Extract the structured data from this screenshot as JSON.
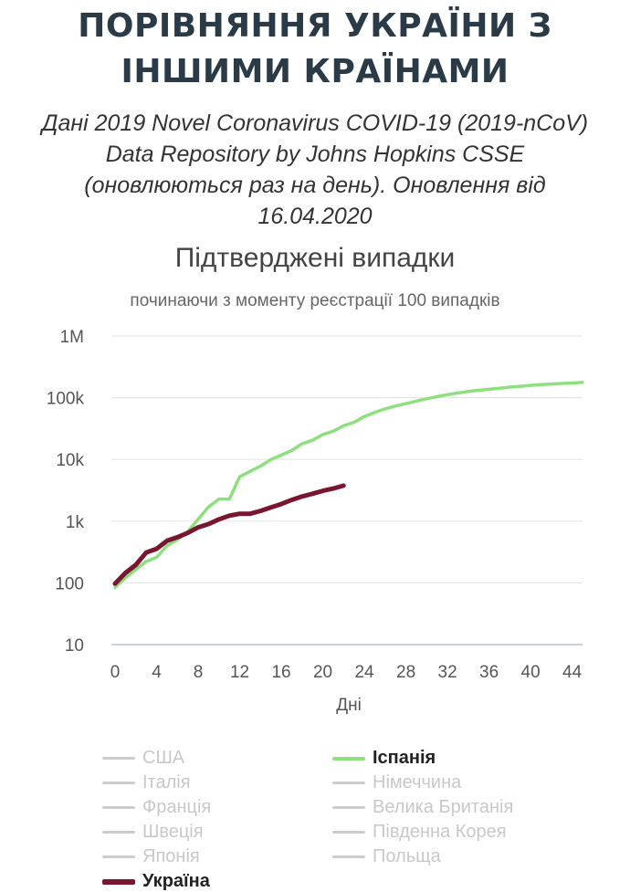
{
  "header": {
    "title_line1": "ПОРІВНЯННЯ УКРАЇНИ З",
    "title_line2": "ІНШИМИ КРАЇНАМИ",
    "subtitle_lines": [
      "Дані 2019 Novel Coronavirus COVID-19 (2019-nCoV)",
      "Data Repository by Johns Hopkins CSSE",
      "(оновлюються раз на день). Оновлення від",
      "16.04.2020"
    ]
  },
  "chart_data": {
    "type": "line",
    "title": "Підтверджені випадки",
    "subtitle": "починаючи з моменту реєстрації 100 випадків",
    "xlabel": "Дні",
    "ylabel": "",
    "yscale": "log",
    "ylim": [
      10,
      1000000
    ],
    "xlim": [
      0,
      45
    ],
    "x_ticks": [
      0,
      4,
      8,
      12,
      16,
      20,
      24,
      28,
      32,
      36,
      40,
      44
    ],
    "x_tick_labels": [
      "0",
      "4",
      "8",
      "12",
      "16",
      "20",
      "24",
      "28",
      "32",
      "36",
      "40",
      "44"
    ],
    "y_ticks": [
      10,
      100,
      1000,
      10000,
      100000,
      1000000
    ],
    "y_tick_labels": [
      "10",
      "100",
      "1k",
      "10k",
      "100k",
      "1M"
    ],
    "grid": true,
    "legend_placement": "bottom",
    "series": [
      {
        "name": "Іспанія",
        "color": "#8ee07e",
        "active": true,
        "x": [
          0,
          1,
          2,
          3,
          4,
          5,
          6,
          7,
          8,
          9,
          10,
          11,
          12,
          13,
          14,
          15,
          16,
          17,
          18,
          19,
          20,
          21,
          22,
          23,
          24,
          25,
          26,
          27,
          28,
          29,
          30,
          31,
          32,
          33,
          34,
          35,
          36,
          37,
          38,
          39,
          40,
          41,
          42,
          43,
          44,
          45
        ],
        "values": [
          84,
          120,
          165,
          222,
          259,
          400,
          500,
          673,
          1073,
          1695,
          2277,
          2277,
          5232,
          6391,
          7798,
          9942,
          11748,
          13910,
          17963,
          20410,
          25374,
          28603,
          35136,
          39885,
          49515,
          57786,
          65719,
          73235,
          80110,
          87956,
          95923,
          104118,
          112065,
          119199,
          126168,
          131646,
          136675,
          141942,
          148220,
          153222,
          158273,
          163027,
          166831,
          170099,
          172541,
          177644
        ]
      },
      {
        "name": "Україна",
        "color": "#7a1730",
        "active": true,
        "x": [
          0,
          1,
          2,
          3,
          4,
          5,
          6,
          7,
          8,
          9,
          10,
          11,
          12,
          13,
          14,
          15,
          16,
          17,
          18,
          19,
          20,
          21,
          22
        ],
        "values": [
          97,
          145,
          196,
          310,
          356,
          480,
          549,
          645,
          794,
          897,
          1072,
          1225,
          1319,
          1319,
          1462,
          1668,
          1892,
          2203,
          2511,
          2777,
          3102,
          3372,
          3764
        ]
      },
      {
        "name": "США",
        "color": "#cccccc",
        "active": false
      },
      {
        "name": "Італія",
        "color": "#cccccc",
        "active": false
      },
      {
        "name": "Німеччина",
        "color": "#cccccc",
        "active": false
      },
      {
        "name": "Франція",
        "color": "#cccccc",
        "active": false
      },
      {
        "name": "Велика Британія",
        "color": "#cccccc",
        "active": false
      },
      {
        "name": "Швеція",
        "color": "#cccccc",
        "active": false
      },
      {
        "name": "Південна Корея",
        "color": "#cccccc",
        "active": false
      },
      {
        "name": "Японія",
        "color": "#cccccc",
        "active": false
      },
      {
        "name": "Польща",
        "color": "#cccccc",
        "active": false
      }
    ],
    "legend_order": [
      "США",
      "Іспанія",
      "Італія",
      "Німеччина",
      "Франція",
      "Велика Британія",
      "Швеція",
      "Південна Корея",
      "Японія",
      "Польща",
      "Україна"
    ]
  }
}
